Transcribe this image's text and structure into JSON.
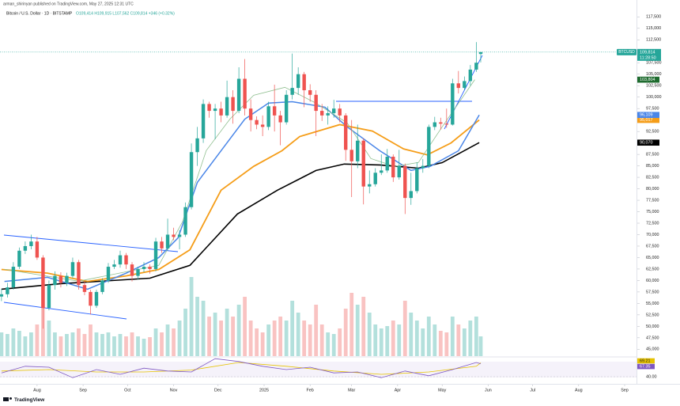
{
  "header": {
    "publisher": "arman_shirinyan published on TradingView.com, May 27, 2025 12:31 UTC",
    "symbol": "Bitcoin / U.S. Dollar · 1D · BITSTAMP",
    "ohlc": "O109,414 H109,915 L107,562 C109,814 +346 (+0.32%)"
  },
  "footer": "TradingView",
  "symbol_tag": "BTCUSD",
  "last_price": {
    "value": 109814,
    "label": "109,814"
  },
  "countdown": "11:28:50",
  "chart_data": {
    "type": "candlestick",
    "up_color": "#26a69a",
    "down_color": "#ef5350",
    "grid": false,
    "xlim": [
      -1,
      428
    ],
    "xticks": [
      {
        "value": 24,
        "label": "Aug"
      },
      {
        "value": 55,
        "label": "Sep"
      },
      {
        "value": 85,
        "label": "Oct"
      },
      {
        "value": 116,
        "label": "Nov"
      },
      {
        "value": 146,
        "label": "Dec"
      },
      {
        "value": 177,
        "label": "2025"
      },
      {
        "value": 208,
        "label": "Feb"
      },
      {
        "value": 236,
        "label": "Mar"
      },
      {
        "value": 267,
        "label": "Apr"
      },
      {
        "value": 297,
        "label": "May"
      },
      {
        "value": 328,
        "label": "Jun"
      },
      {
        "value": 358,
        "label": "Jul"
      },
      {
        "value": 389,
        "label": "Aug"
      },
      {
        "value": 420,
        "label": "Sep"
      }
    ],
    "ylim": [
      43500,
      119800
    ],
    "yticks": [
      {
        "value": 117500,
        "label": "117,500"
      },
      {
        "value": 115000,
        "label": "115,000"
      },
      {
        "value": 112500,
        "label": "112,500"
      },
      {
        "value": 110000,
        "label": "110,000"
      },
      {
        "value": 107500,
        "label": "107,500"
      },
      {
        "value": 105000,
        "label": "105,000"
      },
      {
        "value": 102500,
        "label": "102,500"
      },
      {
        "value": 100000,
        "label": "100,000"
      },
      {
        "value": 97500,
        "label": "97,500"
      },
      {
        "value": 95000,
        "label": "95,000"
      },
      {
        "value": 92500,
        "label": "92,500"
      },
      {
        "value": 90000,
        "label": "90,000"
      },
      {
        "value": 87500,
        "label": "87,500"
      },
      {
        "value": 85000,
        "label": "85,000"
      },
      {
        "value": 82500,
        "label": "82,500"
      },
      {
        "value": 80000,
        "label": "80,000"
      },
      {
        "value": 77500,
        "label": "77,500"
      },
      {
        "value": 75000,
        "label": "75,000"
      },
      {
        "value": 72500,
        "label": "72,500"
      },
      {
        "value": 70000,
        "label": "70,000"
      },
      {
        "value": 67500,
        "label": "67,500"
      },
      {
        "value": 65000,
        "label": "65,000"
      },
      {
        "value": 62500,
        "label": "62,500"
      },
      {
        "value": 60000,
        "label": "60,000"
      },
      {
        "value": 57500,
        "label": "57,500"
      },
      {
        "value": 55000,
        "label": "55,000"
      },
      {
        "value": 52500,
        "label": "52,500"
      },
      {
        "value": 50000,
        "label": "50,000"
      },
      {
        "value": 47500,
        "label": "47,500"
      },
      {
        "value": 45000,
        "label": "45,000"
      }
    ],
    "x": [
      0,
      4,
      8,
      12,
      16,
      20,
      24,
      28,
      32,
      36,
      40,
      44,
      48,
      52,
      56,
      60,
      64,
      68,
      72,
      76,
      80,
      84,
      88,
      92,
      96,
      100,
      104,
      108,
      112,
      116,
      120,
      124,
      128,
      132,
      136,
      140,
      144,
      148,
      152,
      156,
      160,
      164,
      168,
      172,
      176,
      180,
      184,
      188,
      192,
      196,
      200,
      204,
      208,
      212,
      216,
      220,
      224,
      228,
      232,
      236,
      240,
      244,
      248,
      252,
      256,
      260,
      264,
      268,
      272,
      276,
      280,
      284,
      288,
      292,
      296,
      300,
      304,
      308,
      312,
      316,
      320,
      323
    ],
    "open": [
      56500,
      57000,
      58500,
      63000,
      66500,
      67500,
      68500,
      65000,
      54000,
      59000,
      61000,
      59500,
      61000,
      64000,
      59000,
      57500,
      54500,
      57500,
      60000,
      63000,
      63500,
      65500,
      63500,
      61000,
      62500,
      63000,
      62500,
      68500,
      67000,
      70000,
      69500,
      70000,
      76000,
      88000,
      91000,
      98500,
      97000,
      97500,
      96000,
      100000,
      97000,
      104000,
      97500,
      95000,
      94000,
      93500,
      98000,
      96000,
      94500,
      100500,
      102000,
      105000,
      101500,
      100500,
      97000,
      96000,
      96500,
      97500,
      96000,
      88500,
      86000,
      90500,
      80500,
      81000,
      83500,
      84000,
      87000,
      82500,
      85000,
      78000,
      79500,
      84500,
      85000,
      93500,
      94500,
      94200,
      94000,
      103000,
      102000,
      103500,
      106000,
      109414
    ],
    "high": [
      58200,
      59500,
      64000,
      67200,
      68500,
      70000,
      69500,
      65500,
      60000,
      62000,
      61800,
      61700,
      65000,
      64500,
      59800,
      58000,
      58000,
      60500,
      63800,
      64500,
      66500,
      66000,
      64000,
      63000,
      64000,
      63500,
      69300,
      69500,
      73500,
      71500,
      71000,
      77000,
      89900,
      93500,
      99500,
      99000,
      98500,
      99000,
      103600,
      101500,
      106500,
      108300,
      99500,
      95800,
      96000,
      99000,
      102700,
      97000,
      101500,
      109500,
      106500,
      105500,
      102800,
      101500,
      98500,
      98000,
      99400,
      98500,
      96500,
      95000,
      94000,
      91000,
      84000,
      84500,
      87500,
      88700,
      87500,
      88500,
      85500,
      83500,
      85800,
      86500,
      94000,
      95700,
      95500,
      97500,
      104000,
      105700,
      104500,
      107000,
      112000,
      109915
    ],
    "low": [
      55500,
      56300,
      58000,
      62500,
      65800,
      66800,
      64500,
      49500,
      53500,
      58000,
      58500,
      58800,
      60500,
      58000,
      56800,
      52600,
      54000,
      57000,
      59500,
      62500,
      62800,
      62500,
      59800,
      60200,
      61800,
      61500,
      62000,
      66000,
      66500,
      68800,
      66800,
      69500,
      75500,
      85000,
      90000,
      95500,
      90800,
      94500,
      95500,
      94200,
      96500,
      96000,
      92500,
      93000,
      91500,
      92800,
      92500,
      89500,
      94000,
      99500,
      100500,
      97800,
      99000,
      91500,
      94800,
      94000,
      95500,
      94500,
      86100,
      78200,
      84500,
      76600,
      79000,
      80500,
      83000,
      83500,
      81500,
      82000,
      74500,
      76500,
      79000,
      83500,
      84500,
      92800,
      92900,
      93300,
      93800,
      100800,
      101500,
      102500,
      105500,
      107562
    ],
    "close": [
      57000,
      58500,
      63000,
      66500,
      67500,
      68500,
      65000,
      54000,
      59000,
      61000,
      59500,
      61000,
      64000,
      59000,
      57500,
      54500,
      57500,
      60000,
      63000,
      63500,
      65500,
      63500,
      61000,
      62500,
      63000,
      62500,
      68500,
      67000,
      70000,
      69500,
      70000,
      76000,
      88000,
      91000,
      98500,
      97000,
      97500,
      96000,
      100000,
      97000,
      104000,
      97500,
      95000,
      94000,
      93500,
      98000,
      96000,
      94500,
      100500,
      102000,
      105000,
      101500,
      100500,
      97000,
      96000,
      96500,
      97500,
      96000,
      88500,
      86000,
      90500,
      80500,
      81000,
      83500,
      84000,
      87000,
      82500,
      85000,
      78000,
      79500,
      84500,
      85000,
      93500,
      94500,
      94200,
      94000,
      103000,
      102000,
      103500,
      106000,
      107500,
      109814
    ],
    "lines": [
      {
        "color": "#000000",
        "width": 1.6,
        "x": [
          0,
          40,
          100,
          127,
          159,
          186,
          212,
          231,
          255,
          281,
          297,
          322
        ],
        "values": [
          58100,
          59300,
          60500,
          63300,
          74500,
          79700,
          84000,
          85400,
          85200,
          84500,
          85700,
          90070
        ],
        "value_labels": [
          null,
          null,
          null,
          null,
          null,
          null,
          null,
          null,
          null,
          null,
          null,
          "90,070"
        ]
      },
      {
        "color": "#f59d18",
        "width": 1.8,
        "x": [
          0,
          31,
          58,
          84,
          106,
          127,
          148,
          170,
          189,
          201,
          228,
          250,
          271,
          287,
          303,
          322
        ],
        "values": [
          62400,
          61600,
          59800,
          61000,
          62400,
          66700,
          79700,
          84900,
          88300,
          91400,
          94000,
          92600,
          88700,
          87400,
          90000,
          95017
        ],
        "value_labels": [
          null,
          null,
          null,
          null,
          null,
          null,
          null,
          null,
          null,
          null,
          null,
          null,
          null,
          null,
          null,
          "95,017"
        ]
      },
      {
        "color": "#4a86e8",
        "width": 1.5,
        "x": [
          2,
          31,
          58,
          84,
          106,
          119,
          132,
          148,
          164,
          180,
          196,
          218,
          233,
          255,
          276,
          289,
          308,
          322
        ],
        "values": [
          59800,
          60700,
          58100,
          61600,
          65000,
          69300,
          81400,
          88300,
          95200,
          98700,
          99000,
          97800,
          93500,
          88300,
          84000,
          84900,
          88300,
          96109
        ],
        "value_labels": [
          null,
          null,
          null,
          null,
          null,
          null,
          null,
          null,
          null,
          null,
          null,
          null,
          null,
          null,
          null,
          null,
          null,
          "96,109"
        ]
      },
      {
        "color": "#8fbf8f",
        "width": 0.8,
        "x": [
          2,
          52,
          106,
          122,
          138,
          154,
          170,
          191,
          212,
          233,
          249,
          265,
          281,
          297,
          319
        ],
        "values": [
          62440,
          59850,
          63300,
          72800,
          88330,
          95230,
          100410,
          102140,
          98680,
          94370,
          86600,
          84880,
          85740,
          93510,
          103804
        ],
        "value_labels": [
          null,
          null,
          null,
          null,
          null,
          null,
          null,
          null,
          null,
          null,
          null,
          null,
          null,
          null,
          "103,804"
        ]
      }
    ],
    "volume": {
      "ylim": [
        0,
        110
      ],
      "values": [
        30,
        28,
        35,
        32,
        25,
        30,
        40,
        90,
        45,
        30,
        25,
        28,
        30,
        35,
        28,
        40,
        30,
        28,
        30,
        25,
        28,
        25,
        30,
        25,
        22,
        24,
        35,
        30,
        40,
        35,
        45,
        60,
        100,
        75,
        70,
        50,
        55,
        45,
        60,
        50,
        65,
        75,
        45,
        35,
        30,
        40,
        45,
        50,
        45,
        70,
        55,
        45,
        40,
        65,
        40,
        30,
        28,
        35,
        60,
        80,
        65,
        75,
        55,
        40,
        35,
        38,
        45,
        40,
        70,
        55,
        45,
        35,
        50,
        40,
        32,
        30,
        50,
        40,
        35,
        45,
        50,
        25
      ]
    },
    "rsi": {
      "ylim": [
        30,
        80
      ],
      "yticks": [
        {
          "value": 40,
          "label": "40.00"
        }
      ],
      "color": "#7e57c2",
      "x": [
        0,
        16,
        32,
        48,
        64,
        80,
        96,
        112,
        128,
        144,
        160,
        176,
        192,
        208,
        224,
        240,
        256,
        272,
        288,
        304,
        320,
        323
      ],
      "values": [
        48,
        62,
        60,
        38,
        55,
        45,
        58,
        52,
        50,
        78,
        72,
        62,
        55,
        60,
        48,
        50,
        38,
        52,
        42,
        55,
        70,
        67.35
      ],
      "ma_color": "#e6c200",
      "ma_x": [
        0,
        32,
        64,
        96,
        128,
        160,
        192,
        224,
        256,
        288,
        320,
        323
      ],
      "ma_values": [
        52,
        55,
        50,
        50,
        54,
        70,
        62,
        52,
        45,
        50,
        62,
        69.21
      ]
    }
  }
}
